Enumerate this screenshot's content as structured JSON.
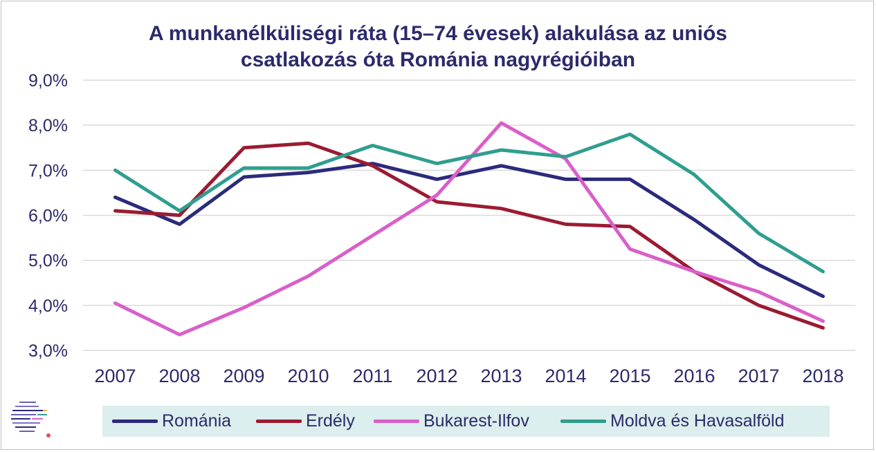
{
  "chart_data": {
    "type": "line",
    "title_lines": [
      "A munkanélküliségi ráta (15–74 évesek) alakulása az uniós",
      "csatlakozás óta Románia nagyrégióiban"
    ],
    "categories": [
      "2007",
      "2008",
      "2009",
      "2010",
      "2011",
      "2012",
      "2013",
      "2014",
      "2015",
      "2016",
      "2017",
      "2018"
    ],
    "y_ticks": [
      "3,0%",
      "4,0%",
      "5,0%",
      "6,0%",
      "7,0%",
      "8,0%",
      "9,0%"
    ],
    "ylim": [
      3.0,
      9.0
    ],
    "grid": true,
    "legend_position": "bottom",
    "series": [
      {
        "name": "Románia",
        "color": "#2b2a7b",
        "values": [
          6.4,
          5.8,
          6.85,
          6.95,
          7.15,
          6.8,
          7.1,
          6.8,
          6.8,
          5.9,
          4.9,
          4.2
        ]
      },
      {
        "name": "Erdély",
        "color": "#9b1b32",
        "values": [
          6.1,
          6.0,
          7.5,
          7.6,
          7.1,
          6.3,
          6.15,
          5.8,
          5.75,
          4.75,
          4.0,
          3.5
        ]
      },
      {
        "name": "Bukarest-Ilfov",
        "color": "#d95fc9",
        "values": [
          4.05,
          3.35,
          3.95,
          4.65,
          5.55,
          6.45,
          8.05,
          7.25,
          5.25,
          4.75,
          4.3,
          3.65
        ]
      },
      {
        "name": "Moldva és Havasalföld",
        "color": "#2f9e8f",
        "values": [
          7.0,
          6.1,
          7.05,
          7.05,
          7.55,
          7.15,
          7.45,
          7.3,
          7.8,
          6.9,
          5.6,
          4.75
        ]
      }
    ]
  },
  "logo": {
    "name": "logo"
  }
}
